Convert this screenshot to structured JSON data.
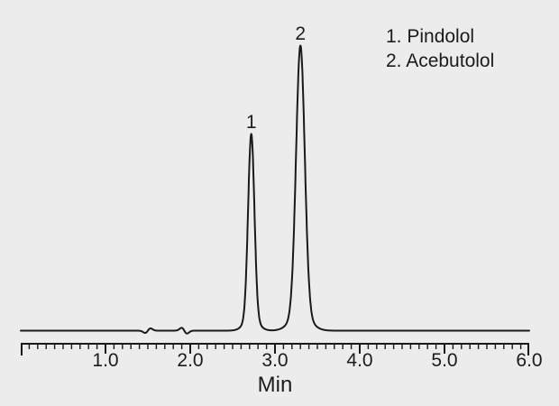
{
  "figure": {
    "background_color": "#ececec",
    "trace_color": "#1a1a1a",
    "text_color": "#1b1b1b"
  },
  "chart_data": {
    "type": "line",
    "subtype": "chromatogram",
    "title": "",
    "xlabel": "Min",
    "ylabel": "",
    "x_range": [
      0,
      6.0
    ],
    "x_major_tick_values": [
      1.0,
      2.0,
      3.0,
      4.0,
      5.0,
      6.0
    ],
    "x_tick_labels": [
      "1.0",
      "2.0",
      "3.0",
      "4.0",
      "5.0",
      "6.0"
    ],
    "x_minor_tick_step": 0.1,
    "y_axis_shown": false,
    "grid": false,
    "legend_position": "top-right",
    "legend_entries": [
      "1. Pindolol",
      "2. Acebutolol"
    ],
    "peaks": [
      {
        "label": "1",
        "compound": "Pindolol",
        "retention_time_min": 2.72,
        "relative_height": 0.69,
        "sigma_min": 0.037
      },
      {
        "label": "2",
        "compound": "Acebutolol",
        "retention_time_min": 3.3,
        "relative_height": 1.0,
        "sigma_min": 0.051
      }
    ],
    "baseline_disturbances": [
      {
        "time_min": 1.5,
        "amplitude_rel": 0.008,
        "shape": "dip-bump"
      },
      {
        "time_min": 1.93,
        "amplitude_rel": 0.01,
        "shape": "bump-dip"
      }
    ]
  }
}
